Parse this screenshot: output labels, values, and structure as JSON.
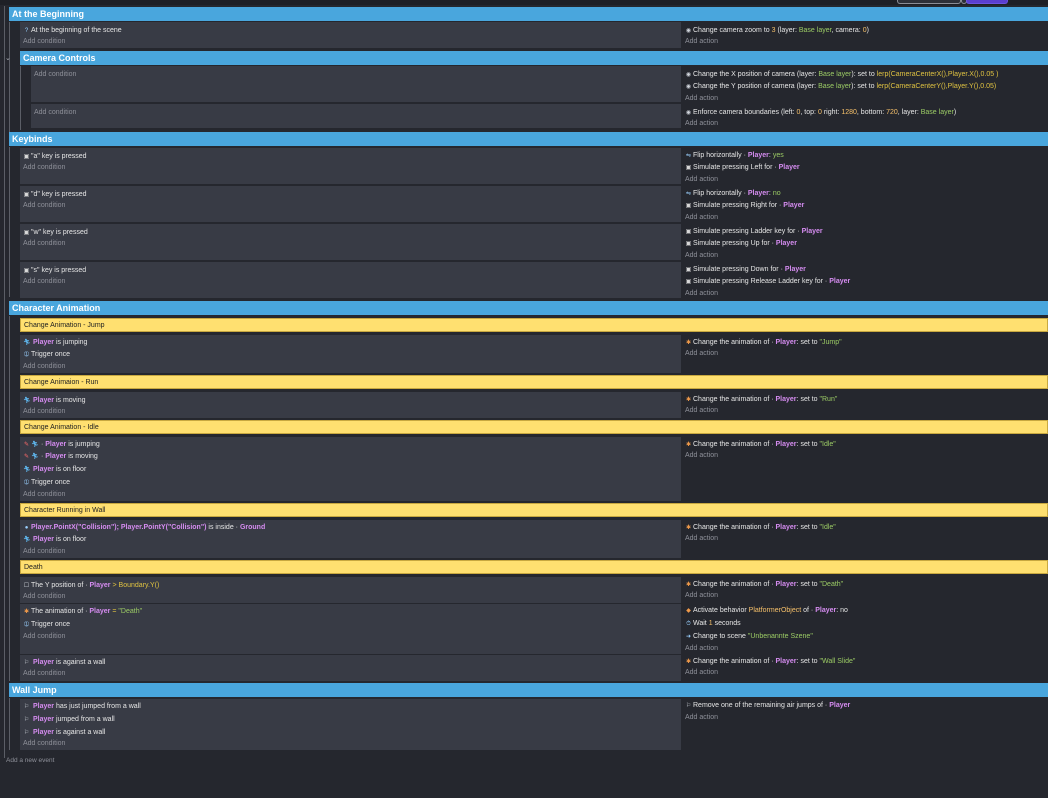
{
  "top_buttons": [
    "",
    ""
  ],
  "add_event_label": "Add a new event",
  "groups": {
    "beginning": "At the Beginning",
    "camera": "Camera Controls",
    "keybinds": "Keybinds",
    "anim": "Character Animation",
    "walljump": "Wall Jump"
  },
  "comments": {
    "jump": "Change Animation - Jump",
    "run": "Change Animaion - Run",
    "idle": "Change Animation - Idle",
    "wall": "Character Running in Wall",
    "death": "Death"
  },
  "common": {
    "add_condition": "Add condition",
    "add_action": "Add action",
    "player": "Player",
    "trigger_once": "Trigger once",
    "set_to": "set to",
    "is_jumping": "is jumping",
    "is_moving": "is moving",
    "is_on_floor": "is on floor",
    "change_anim": "Change the animation of",
    "sim_press": "Simulate pressing",
    "flip_h": "Flip horizontally",
    "for": "for"
  },
  "beginning": {
    "cond": "At the beginning of the scene",
    "act_text": "Change camera zoom to",
    "act_zoom": "3",
    "act_layer_prefix": "(layer:",
    "act_layer": "Base layer",
    "act_camera_prefix": ", camera:",
    "act_camera": "0",
    "act_suffix": ")"
  },
  "camera": {
    "ax_text": "Change the X position of camera",
    "ax_layer_prefix": "(layer:",
    "ax_layer": "Base layer",
    "ax_set": "): set to",
    "ax_expr": "lerp(CameraCenterX(),Player.X(),0.05 )",
    "ay_text": "Change the Y position of camera",
    "ay_layer_prefix": "(layer:",
    "ay_layer": "Base layer",
    "ay_set": "): set to",
    "ay_expr": "lerp(CameraCenterY(),Player.Y(),0.05)",
    "b_text": "Enforce camera boundaries (left:",
    "b_left": "0",
    "b_top_label": ", top:",
    "b_top": "0",
    "b_right_label": "right:",
    "b_right": "1280",
    "b_bottom_label": ", bottom:",
    "b_bottom": "720",
    "b_layer_label": ", layer:",
    "b_layer": "Base layer",
    "b_suffix": ")"
  },
  "keys": {
    "a": "\"a\"",
    "d": "\"d\"",
    "w": "\"w\"",
    "s": "\"s\"",
    "pressed": "key is pressed",
    "yes": "yes",
    "no": "no",
    "left": "Left",
    "right": "Right",
    "ladder": "Ladder key",
    "up": "Up",
    "down": "Down",
    "release_ladder": "Release Ladder key",
    "colon": ":"
  },
  "anim": {
    "jump": "\"Jump\"",
    "run": "\"Run\"",
    "idle": "\"Idle\"",
    "death": "\"Death\"",
    "wall_slide": "\"Wall Slide\""
  },
  "wall": {
    "point": "Player.PointX(\"Collision\"); Player.PointY(\"Collision\")",
    "inside": "is inside",
    "ground": "Ground"
  },
  "death": {
    "ypos": "The Y position of",
    "gt": ">",
    "boundary": "Boundary.Y()",
    "anim_of": "The animation of",
    "eq": "=",
    "activate": "Activate behavior",
    "behavior": "PlatformerObject",
    "of": "of",
    "colon_no": ": no",
    "wait": "Wait",
    "wait_n": "1",
    "seconds": "seconds",
    "change_scene": "Change to scene",
    "scene": "\"Unbenannte Szene\"",
    "against_wall": "is against a wall"
  },
  "walljump": {
    "just_jumped": "has just jumped from a wall",
    "jumped": "jumped from a wall",
    "against": "is against a wall",
    "remove": "Remove one of the remaining air jumps of"
  }
}
